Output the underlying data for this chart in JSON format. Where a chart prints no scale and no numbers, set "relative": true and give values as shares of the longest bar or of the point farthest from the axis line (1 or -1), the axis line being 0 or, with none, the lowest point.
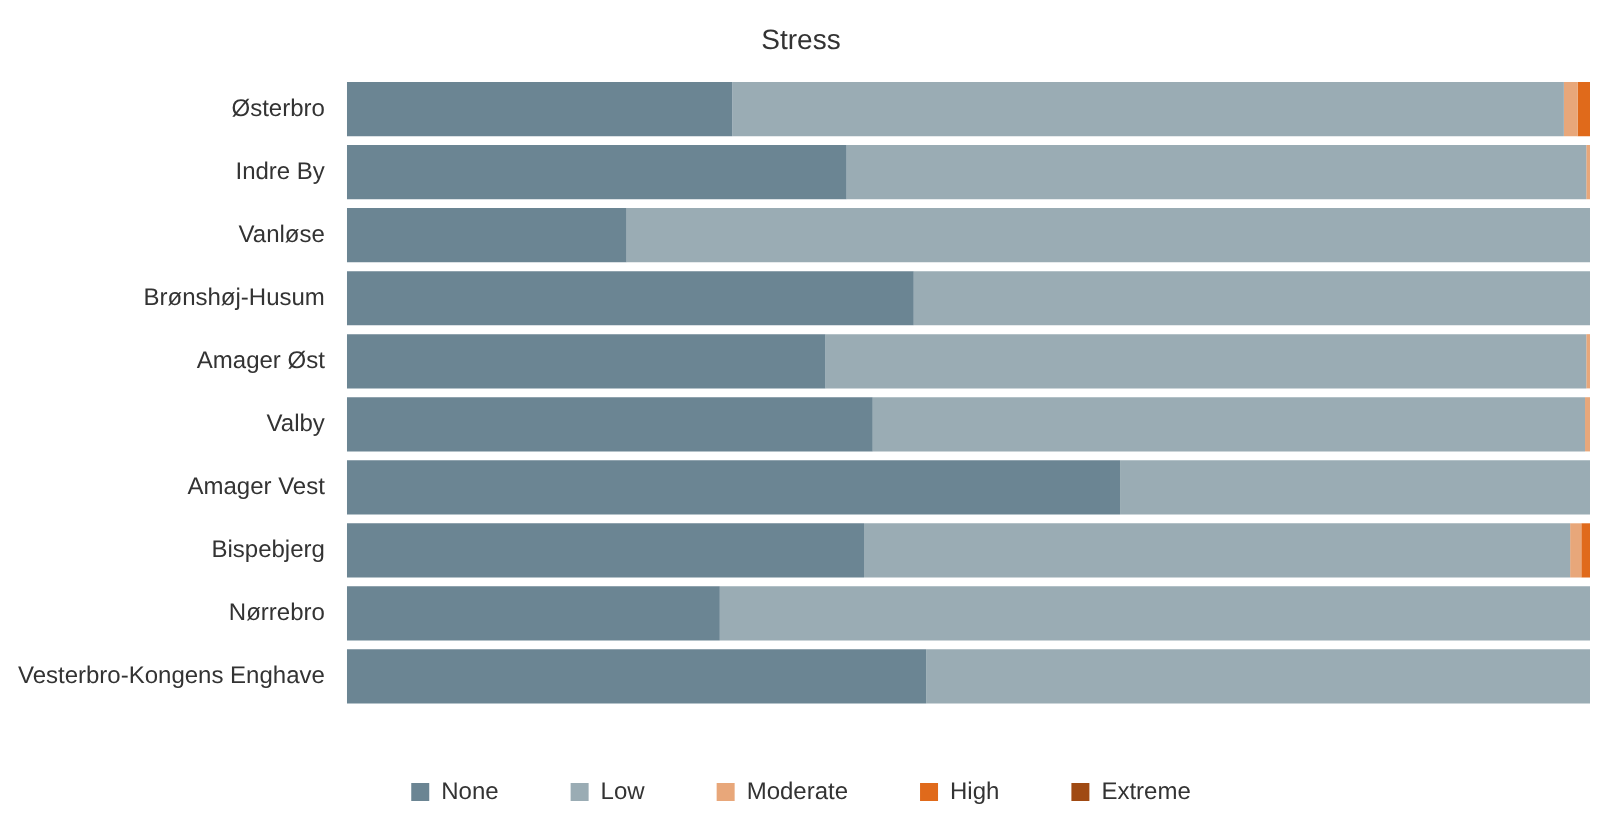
{
  "chart_data": {
    "type": "bar",
    "title": "Stress",
    "orientation": "horizontal",
    "stacked": true,
    "relative": true,
    "legend": "bottom",
    "categories": [
      "Østerbro",
      "Indre By",
      "Vanløse",
      "Brønshøj-Husum",
      "Amager Øst",
      "Valby",
      "Amager Vest",
      "Bispebjerg",
      "Nørrebro",
      "Vesterbro-Kongens Enghave"
    ],
    "series": [
      {
        "name": "None",
        "color": "#6b8593",
        "values": [
          0.31,
          0.402,
          0.225,
          0.456,
          0.385,
          0.423,
          0.622,
          0.416,
          0.3,
          0.466
        ]
      },
      {
        "name": "Low",
        "color": "#9aacb4",
        "values": [
          0.669,
          0.595,
          0.775,
          0.544,
          0.612,
          0.573,
          0.378,
          0.568,
          0.7,
          0.534
        ]
      },
      {
        "name": "Moderate",
        "color": "#e8a77a",
        "values": [
          0.011,
          0.003,
          0,
          0,
          0.003,
          0.004,
          0,
          0.009,
          0,
          0
        ]
      },
      {
        "name": "High",
        "color": "#e06a1b",
        "values": [
          0.01,
          0,
          0,
          0,
          0,
          0,
          0,
          0.007,
          0,
          0
        ]
      },
      {
        "name": "Extreme",
        "color": "#a04a13",
        "values": [
          0,
          0,
          0,
          0,
          0,
          0,
          0,
          0,
          0,
          0
        ]
      }
    ]
  }
}
